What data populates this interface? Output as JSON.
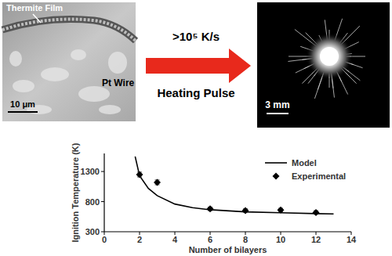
{
  "left_image": {
    "film_label": "Thermite Film",
    "wire_label": "Pt Wire",
    "scale": "10 μm"
  },
  "arrow": {
    "rate": ">10⁵ K/s",
    "label": "Heating Pulse"
  },
  "right_image": {
    "scale": "3 mm"
  },
  "chart_data": {
    "type": "scatter",
    "xlabel": "Number of bilayers",
    "ylabel": "Ignition Temperature (K)",
    "xlim": [
      0,
      14
    ],
    "xticks": [
      0,
      2,
      4,
      6,
      8,
      10,
      12,
      14
    ],
    "ylim": [
      300,
      1600
    ],
    "yticks": [
      300,
      800,
      1300
    ],
    "grid": false,
    "legend": "upper right",
    "series": [
      {
        "name": "Model",
        "type": "line",
        "color": "#000000",
        "line_style": "solid",
        "x": [
          1.75,
          2,
          2.5,
          3,
          4,
          5,
          6,
          8,
          10,
          12,
          13
        ],
        "values": [
          1550,
          1230,
          1020,
          900,
          760,
          700,
          665,
          630,
          615,
          600,
          595
        ]
      },
      {
        "name": "Experimental",
        "type": "scatter",
        "color": "#000000",
        "marker": "diamond",
        "x": [
          2,
          3,
          6,
          8,
          10,
          12
        ],
        "values": [
          1250,
          1120,
          680,
          650,
          660,
          620
        ],
        "errors": [
          40,
          40,
          30,
          30,
          30,
          30
        ]
      }
    ]
  }
}
